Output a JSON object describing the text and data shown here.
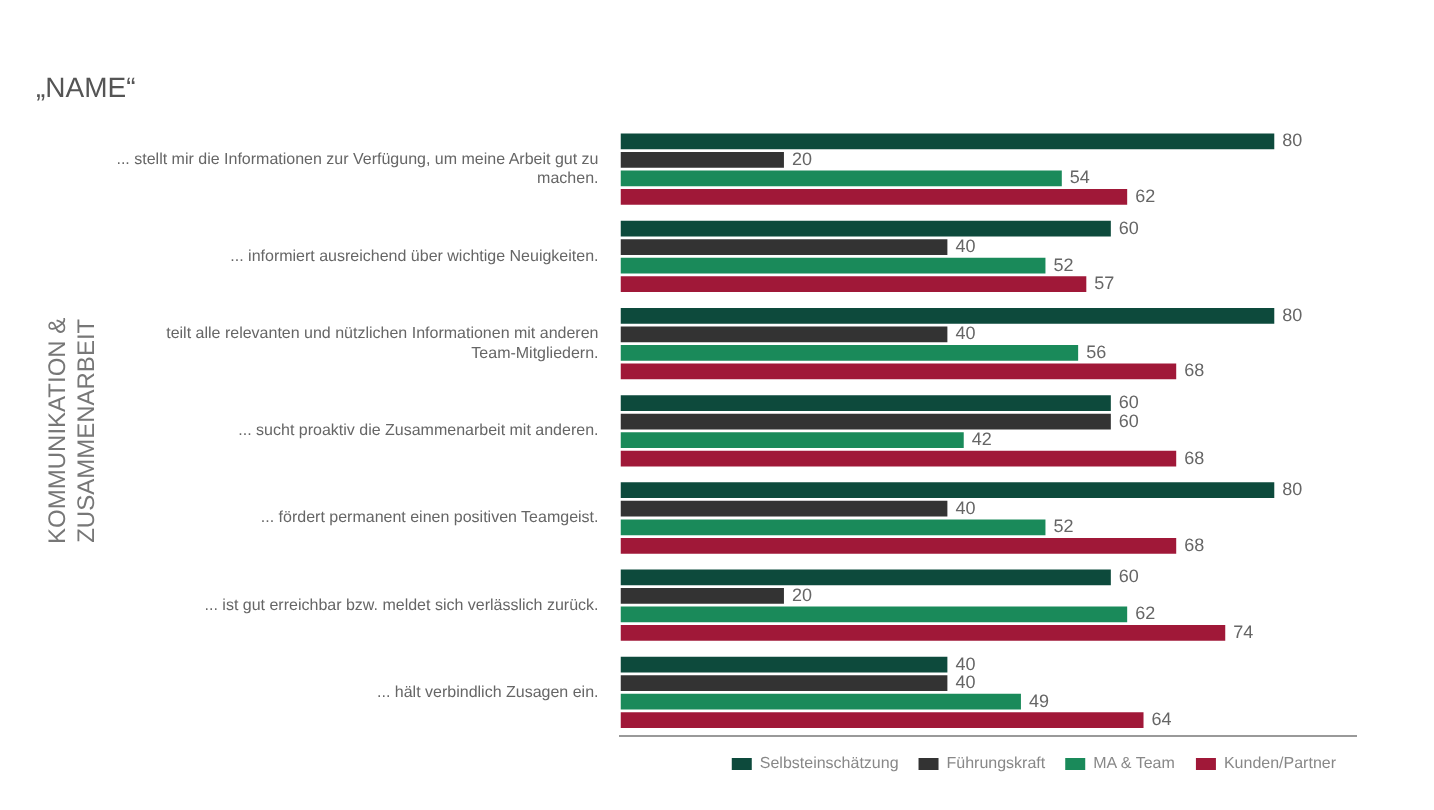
{
  "chart_data": {
    "type": "bar",
    "orientation": "horizontal",
    "title": "„NAME“",
    "ylabel": "KOMMUNIKATION & ZUSAMMENARBEIT",
    "categories": [
      "... stellt mir die Informationen zur Verfügung, um meine Arbeit gut zu machen.",
      "... informiert ausreichend über wichtige Neuigkeiten.",
      "teilt alle relevanten und nützlichen Informationen mit anderen Team-Mitgliedern.",
      "... sucht proaktiv die Zusammenarbeit mit anderen.",
      "... fördert permanent einen positiven Teamgeist.",
      "... ist gut erreichbar bzw. meldet sich verlässlich zurück.",
      "... hält verbindlich Zusagen ein."
    ],
    "series": [
      {
        "name": "Selbsteinschätzung",
        "color": "#0d4a3c",
        "values": [
          80,
          60,
          80,
          60,
          80,
          60,
          40
        ]
      },
      {
        "name": "Führungskraft",
        "color": "#333333",
        "values": [
          20,
          40,
          40,
          60,
          40,
          20,
          40
        ]
      },
      {
        "name": "MA & Team",
        "color": "#1a8a5a",
        "values": [
          54,
          52,
          56,
          42,
          52,
          62,
          49
        ]
      },
      {
        "name": "Kunden/Partner",
        "color": "#a01838",
        "values": [
          62,
          57,
          68,
          68,
          68,
          74,
          64
        ]
      }
    ],
    "data_labels": true,
    "grid": false,
    "legend": "bottom right"
  }
}
